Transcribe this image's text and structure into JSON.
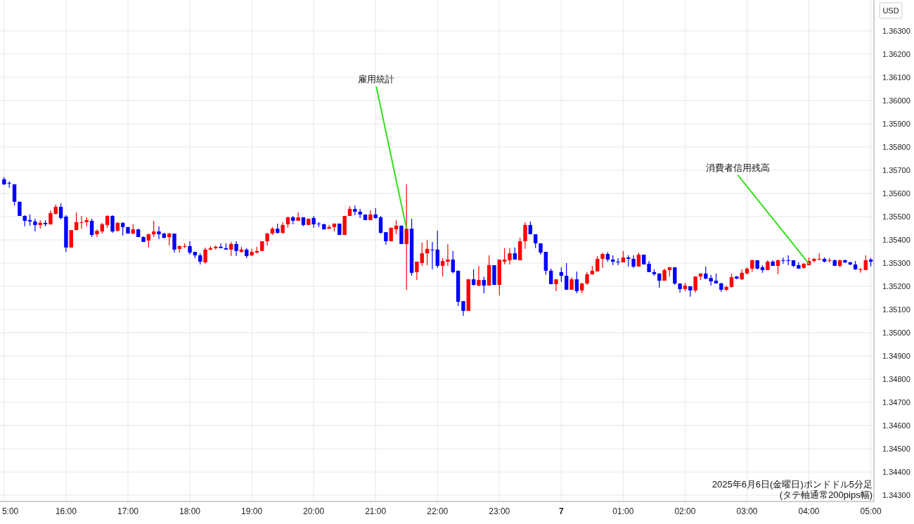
{
  "chart_data": {
    "type": "candlestick",
    "ylabel": "USD",
    "annotations": [
      {
        "text": "雇用統計",
        "x": "2025-06-06T21:30",
        "y": 1.35448
      },
      {
        "text": "消費者信用残高",
        "x": "2025-06-07T04:00",
        "y": 1.35297
      },
      "2025年6月6日(金曜日)ポンドドル5分足",
      "(タテ軸通常200pips幅)"
    ],
    "grid": true,
    "xlim": [
      "2025-06-06T14:56",
      "2025-06-07T05:03"
    ],
    "xticks": [
      {
        "value": "2025-06-06T15:00",
        "label": "5:00"
      },
      {
        "value": "2025-06-06T16:00",
        "label": "16:00"
      },
      {
        "value": "2025-06-06T17:00",
        "label": "17:00"
      },
      {
        "value": "2025-06-06T18:00",
        "label": "18:00"
      },
      {
        "value": "2025-06-06T19:00",
        "label": "19:00"
      },
      {
        "value": "2025-06-06T20:00",
        "label": "20:00"
      },
      {
        "value": "2025-06-06T21:00",
        "label": "21:00"
      },
      {
        "value": "2025-06-06T22:00",
        "label": "22:00"
      },
      {
        "value": "2025-06-06T23:00",
        "label": "23:00"
      },
      {
        "value": "2025-06-07T00:00",
        "label": "7"
      },
      {
        "value": "2025-06-07T01:00",
        "label": "01:00"
      },
      {
        "value": "2025-06-07T02:00",
        "label": "02:00"
      },
      {
        "value": "2025-06-07T03:00",
        "label": "03:00"
      },
      {
        "value": "2025-06-07T04:00",
        "label": "04:00"
      },
      {
        "value": "2025-06-07T05:00",
        "label": "05:00"
      }
    ],
    "ylim": [
      1.34273,
      1.36433
    ],
    "yticks": [
      {
        "value": 1.343,
        "label": "1.34300"
      },
      {
        "value": 1.344,
        "label": "1.34400"
      },
      {
        "value": 1.345,
        "label": "1.34500"
      },
      {
        "value": 1.346,
        "label": "1.34600"
      },
      {
        "value": 1.347,
        "label": "1.34700"
      },
      {
        "value": 1.348,
        "label": "1.34800"
      },
      {
        "value": 1.349,
        "label": "1.34900"
      },
      {
        "value": 1.35,
        "label": "1.35000"
      },
      {
        "value": 1.351,
        "label": "1.35100"
      },
      {
        "value": 1.352,
        "label": "1.35200"
      },
      {
        "value": 1.353,
        "label": "1.35300"
      },
      {
        "value": 1.354,
        "label": "1.35400"
      },
      {
        "value": 1.355,
        "label": "1.35500"
      },
      {
        "value": 1.356,
        "label": "1.35600"
      },
      {
        "value": 1.357,
        "label": "1.35700"
      },
      {
        "value": 1.358,
        "label": "1.35800"
      },
      {
        "value": 1.359,
        "label": "1.35900"
      },
      {
        "value": 1.36,
        "label": "1.36000"
      },
      {
        "value": 1.361,
        "label": "1.36100"
      },
      {
        "value": 1.362,
        "label": "1.36200"
      },
      {
        "value": 1.363,
        "label": "1.36300"
      }
    ],
    "x": [
      "2025-06-06T15:00",
      "2025-06-06T15:05",
      "2025-06-06T15:10",
      "2025-06-06T15:15",
      "2025-06-06T15:20",
      "2025-06-06T15:25",
      "2025-06-06T15:30",
      "2025-06-06T15:35",
      "2025-06-06T15:40",
      "2025-06-06T15:45",
      "2025-06-06T15:50",
      "2025-06-06T15:55",
      "2025-06-06T16:00",
      "2025-06-06T16:05",
      "2025-06-06T16:10",
      "2025-06-06T16:15",
      "2025-06-06T16:20",
      "2025-06-06T16:25",
      "2025-06-06T16:30",
      "2025-06-06T16:35",
      "2025-06-06T16:40",
      "2025-06-06T16:45",
      "2025-06-06T16:50",
      "2025-06-06T16:55",
      "2025-06-06T17:00",
      "2025-06-06T17:05",
      "2025-06-06T17:10",
      "2025-06-06T17:15",
      "2025-06-06T17:20",
      "2025-06-06T17:25",
      "2025-06-06T17:30",
      "2025-06-06T17:35",
      "2025-06-06T17:40",
      "2025-06-06T17:45",
      "2025-06-06T17:50",
      "2025-06-06T17:55",
      "2025-06-06T18:00",
      "2025-06-06T18:05",
      "2025-06-06T18:10",
      "2025-06-06T18:15",
      "2025-06-06T18:20",
      "2025-06-06T18:25",
      "2025-06-06T18:30",
      "2025-06-06T18:35",
      "2025-06-06T18:40",
      "2025-06-06T18:45",
      "2025-06-06T18:50",
      "2025-06-06T18:55",
      "2025-06-06T19:00",
      "2025-06-06T19:05",
      "2025-06-06T19:10",
      "2025-06-06T19:15",
      "2025-06-06T19:20",
      "2025-06-06T19:25",
      "2025-06-06T19:30",
      "2025-06-06T19:35",
      "2025-06-06T19:40",
      "2025-06-06T19:45",
      "2025-06-06T19:50",
      "2025-06-06T19:55",
      "2025-06-06T20:00",
      "2025-06-06T20:05",
      "2025-06-06T20:10",
      "2025-06-06T20:15",
      "2025-06-06T20:20",
      "2025-06-06T20:25",
      "2025-06-06T20:30",
      "2025-06-06T20:35",
      "2025-06-06T20:40",
      "2025-06-06T20:45",
      "2025-06-06T20:50",
      "2025-06-06T20:55",
      "2025-06-06T21:00",
      "2025-06-06T21:05",
      "2025-06-06T21:10",
      "2025-06-06T21:15",
      "2025-06-06T21:20",
      "2025-06-06T21:25",
      "2025-06-06T21:30",
      "2025-06-06T21:35",
      "2025-06-06T21:40",
      "2025-06-06T21:45",
      "2025-06-06T21:50",
      "2025-06-06T21:55",
      "2025-06-06T22:00",
      "2025-06-06T22:05",
      "2025-06-06T22:10",
      "2025-06-06T22:15",
      "2025-06-06T22:20",
      "2025-06-06T22:25",
      "2025-06-06T22:30",
      "2025-06-06T22:35",
      "2025-06-06T22:40",
      "2025-06-06T22:45",
      "2025-06-06T22:50",
      "2025-06-06T22:55",
      "2025-06-06T23:00",
      "2025-06-06T23:05",
      "2025-06-06T23:10",
      "2025-06-06T23:15",
      "2025-06-06T23:20",
      "2025-06-06T23:25",
      "2025-06-06T23:30",
      "2025-06-06T23:35",
      "2025-06-06T23:40",
      "2025-06-06T23:45",
      "2025-06-06T23:50",
      "2025-06-06T23:55",
      "2025-06-07T00:00",
      "2025-06-07T00:05",
      "2025-06-07T00:10",
      "2025-06-07T00:15",
      "2025-06-07T00:20",
      "2025-06-07T00:25",
      "2025-06-07T00:30",
      "2025-06-07T00:35",
      "2025-06-07T00:40",
      "2025-06-07T00:45",
      "2025-06-07T00:50",
      "2025-06-07T00:55",
      "2025-06-07T01:00",
      "2025-06-07T01:05",
      "2025-06-07T01:10",
      "2025-06-07T01:15",
      "2025-06-07T01:20",
      "2025-06-07T01:25",
      "2025-06-07T01:30",
      "2025-06-07T01:35",
      "2025-06-07T01:40",
      "2025-06-07T01:45",
      "2025-06-07T01:50",
      "2025-06-07T01:55",
      "2025-06-07T02:00",
      "2025-06-07T02:05",
      "2025-06-07T02:10",
      "2025-06-07T02:15",
      "2025-06-07T02:20",
      "2025-06-07T02:25",
      "2025-06-07T02:30",
      "2025-06-07T02:35",
      "2025-06-07T02:40",
      "2025-06-07T02:45",
      "2025-06-07T02:50",
      "2025-06-07T02:55",
      "2025-06-07T03:00",
      "2025-06-07T03:05",
      "2025-06-07T03:10",
      "2025-06-07T03:15",
      "2025-06-07T03:20",
      "2025-06-07T03:25",
      "2025-06-07T03:30",
      "2025-06-07T03:35",
      "2025-06-07T03:40",
      "2025-06-07T03:45",
      "2025-06-07T03:50",
      "2025-06-07T03:55",
      "2025-06-07T04:00",
      "2025-06-07T04:05",
      "2025-06-07T04:10",
      "2025-06-07T04:15",
      "2025-06-07T04:20",
      "2025-06-07T04:25",
      "2025-06-07T04:30",
      "2025-06-07T04:35",
      "2025-06-07T04:40",
      "2025-06-07T04:45",
      "2025-06-07T04:50",
      "2025-06-07T04:55",
      "2025-06-07T05:00"
    ],
    "ohlc": [
      [
        1.35661,
        1.3567,
        1.35636,
        1.35639
      ],
      [
        1.35645,
        1.35652,
        1.35624,
        1.35642
      ],
      [
        1.35639,
        1.35639,
        1.35548,
        1.35564
      ],
      [
        1.35564,
        1.35564,
        1.35503,
        1.35503
      ],
      [
        1.35503,
        1.35506,
        1.35458,
        1.35482
      ],
      [
        1.35485,
        1.35509,
        1.35461,
        1.35479
      ],
      [
        1.35479,
        1.35491,
        1.35436,
        1.35464
      ],
      [
        1.35464,
        1.35485,
        1.35448,
        1.35473
      ],
      [
        1.35473,
        1.35485,
        1.35458,
        1.35467
      ],
      [
        1.35467,
        1.35527,
        1.35464,
        1.35515
      ],
      [
        1.35512,
        1.35552,
        1.35509,
        1.35542
      ],
      [
        1.35542,
        1.35558,
        1.35488,
        1.35494
      ],
      [
        1.355,
        1.35506,
        1.35348,
        1.35367
      ],
      [
        1.35367,
        1.35442,
        1.35367,
        1.35442
      ],
      [
        1.35442,
        1.35518,
        1.35442,
        1.35476
      ],
      [
        1.35473,
        1.35503,
        1.35448,
        1.35476
      ],
      [
        1.35476,
        1.35497,
        1.35458,
        1.35485
      ],
      [
        1.35482,
        1.35491,
        1.35412,
        1.35421
      ],
      [
        1.35424,
        1.35445,
        1.35412,
        1.35439
      ],
      [
        1.35436,
        1.35473,
        1.35427,
        1.35467
      ],
      [
        1.35464,
        1.35506,
        1.35452,
        1.35503
      ],
      [
        1.35503,
        1.35506,
        1.3543,
        1.35436
      ],
      [
        1.35439,
        1.35476,
        1.35436,
        1.35473
      ],
      [
        1.35473,
        1.35476,
        1.35418,
        1.35455
      ],
      [
        1.35455,
        1.35455,
        1.35427,
        1.35427
      ],
      [
        1.35427,
        1.35467,
        1.35424,
        1.35445
      ],
      [
        1.35445,
        1.35448,
        1.35412,
        1.35412
      ],
      [
        1.35412,
        1.35415,
        1.35391,
        1.35391
      ],
      [
        1.35397,
        1.35427,
        1.35367,
        1.35424
      ],
      [
        1.35424,
        1.35482,
        1.35412,
        1.35436
      ],
      [
        1.35436,
        1.35458,
        1.35403,
        1.35424
      ],
      [
        1.35427,
        1.3543,
        1.35406,
        1.35409
      ],
      [
        1.35412,
        1.3543,
        1.35376,
        1.35427
      ],
      [
        1.35427,
        1.35427,
        1.35345,
        1.35358
      ],
      [
        1.35361,
        1.35376,
        1.35345,
        1.35373
      ],
      [
        1.3537,
        1.35385,
        1.35364,
        1.35373
      ],
      [
        1.35373,
        1.35394,
        1.35336,
        1.35345
      ],
      [
        1.35348,
        1.35348,
        1.35321,
        1.35333
      ],
      [
        1.35333,
        1.35342,
        1.35294,
        1.35306
      ],
      [
        1.35303,
        1.35367,
        1.35297,
        1.35358
      ],
      [
        1.35358,
        1.35373,
        1.35355,
        1.35364
      ],
      [
        1.35364,
        1.35376,
        1.35358,
        1.3537
      ],
      [
        1.3537,
        1.35385,
        1.35364,
        1.35364
      ],
      [
        1.35364,
        1.35385,
        1.35358,
        1.35358
      ],
      [
        1.35358,
        1.35391,
        1.3533,
        1.35382
      ],
      [
        1.35382,
        1.35394,
        1.3533,
        1.35352
      ],
      [
        1.35348,
        1.3537,
        1.35345,
        1.35358
      ],
      [
        1.35358,
        1.35364,
        1.35321,
        1.3533
      ],
      [
        1.35333,
        1.35361,
        1.3533,
        1.35348
      ],
      [
        1.35345,
        1.3537,
        1.35342,
        1.35352
      ],
      [
        1.35352,
        1.35394,
        1.35352,
        1.35394
      ],
      [
        1.35394,
        1.3543,
        1.35376,
        1.35427
      ],
      [
        1.35427,
        1.35455,
        1.35421,
        1.35448
      ],
      [
        1.35448,
        1.3547,
        1.35427,
        1.3543
      ],
      [
        1.3543,
        1.35476,
        1.35427,
        1.35464
      ],
      [
        1.35467,
        1.355,
        1.35452,
        1.35497
      ],
      [
        1.35497,
        1.35503,
        1.35467,
        1.35482
      ],
      [
        1.35482,
        1.35518,
        1.35482,
        1.35497
      ],
      [
        1.35497,
        1.35497,
        1.35458,
        1.35464
      ],
      [
        1.35464,
        1.35491,
        1.35464,
        1.35491
      ],
      [
        1.35494,
        1.35503,
        1.35452,
        1.35467
      ],
      [
        1.3547,
        1.35476,
        1.35455,
        1.35467
      ],
      [
        1.35467,
        1.3547,
        1.35445,
        1.35445
      ],
      [
        1.35448,
        1.35464,
        1.35448,
        1.35455
      ],
      [
        1.35455,
        1.3547,
        1.35436,
        1.3547
      ],
      [
        1.3547,
        1.3547,
        1.35421,
        1.35421
      ],
      [
        1.35421,
        1.35503,
        1.35421,
        1.35503
      ],
      [
        1.35503,
        1.35545,
        1.35503,
        1.35533
      ],
      [
        1.35533,
        1.35548,
        1.35506,
        1.35521
      ],
      [
        1.35521,
        1.35533,
        1.35494,
        1.35509
      ],
      [
        1.35509,
        1.35509,
        1.35485,
        1.35485
      ],
      [
        1.35485,
        1.35527,
        1.35485,
        1.35509
      ],
      [
        1.35509,
        1.35536,
        1.35491,
        1.35494
      ],
      [
        1.35497,
        1.35503,
        1.35427,
        1.3543
      ],
      [
        1.35433,
        1.35433,
        1.35379,
        1.35394
      ],
      [
        1.35394,
        1.35452,
        1.35394,
        1.35452
      ],
      [
        1.35445,
        1.35485,
        1.35424,
        1.35461
      ],
      [
        1.35461,
        1.35461,
        1.35382,
        1.35382
      ],
      [
        1.35382,
        1.35639,
        1.35185,
        1.35448
      ],
      [
        1.35448,
        1.35491,
        1.35245,
        1.35258
      ],
      [
        1.35261,
        1.35306,
        1.35227,
        1.35306
      ],
      [
        1.353,
        1.35388,
        1.35288,
        1.35342
      ],
      [
        1.35342,
        1.354,
        1.35291,
        1.35361
      ],
      [
        1.35358,
        1.35391,
        1.35273,
        1.35355
      ],
      [
        1.35358,
        1.35439,
        1.35279,
        1.35288
      ],
      [
        1.35288,
        1.35321,
        1.35242,
        1.35309
      ],
      [
        1.35306,
        1.35382,
        1.35288,
        1.35315
      ],
      [
        1.35315,
        1.35352,
        1.35255,
        1.35261
      ],
      [
        1.35267,
        1.35267,
        1.35115,
        1.35133
      ],
      [
        1.35136,
        1.35136,
        1.35073,
        1.35094
      ],
      [
        1.35094,
        1.3523,
        1.35094,
        1.3523
      ],
      [
        1.3523,
        1.35273,
        1.35203,
        1.35206
      ],
      [
        1.35203,
        1.35288,
        1.352,
        1.35227
      ],
      [
        1.35227,
        1.35242,
        1.3517,
        1.35203
      ],
      [
        1.35203,
        1.35333,
        1.35203,
        1.35291
      ],
      [
        1.35291,
        1.35291,
        1.35206,
        1.35206
      ],
      [
        1.35206,
        1.35315,
        1.35161,
        1.35315
      ],
      [
        1.35306,
        1.35364,
        1.35294,
        1.35315
      ],
      [
        1.35312,
        1.35364,
        1.35294,
        1.35342
      ],
      [
        1.35342,
        1.35367,
        1.35315,
        1.35315
      ],
      [
        1.35312,
        1.35409,
        1.35312,
        1.35394
      ],
      [
        1.35394,
        1.35476,
        1.35361,
        1.35464
      ],
      [
        1.35464,
        1.35479,
        1.35424,
        1.35424
      ],
      [
        1.35424,
        1.35424,
        1.35364,
        1.35385
      ],
      [
        1.35385,
        1.35385,
        1.35336,
        1.35345
      ],
      [
        1.35348,
        1.35348,
        1.35249,
        1.35267
      ],
      [
        1.35267,
        1.35276,
        1.35209,
        1.35209
      ],
      [
        1.35209,
        1.3523,
        1.35179,
        1.3523
      ],
      [
        1.35261,
        1.35282,
        1.35218,
        1.35245
      ],
      [
        1.35245,
        1.353,
        1.35185,
        1.35185
      ],
      [
        1.35185,
        1.35239,
        1.35185,
        1.3523
      ],
      [
        1.3523,
        1.35264,
        1.3517,
        1.35179
      ],
      [
        1.35182,
        1.35215,
        1.3517,
        1.35212
      ],
      [
        1.35212,
        1.35261,
        1.35206,
        1.35252
      ],
      [
        1.35252,
        1.35288,
        1.35249,
        1.35267
      ],
      [
        1.35264,
        1.3533,
        1.35264,
        1.35318
      ],
      [
        1.35318,
        1.35345,
        1.35279,
        1.35339
      ],
      [
        1.35339,
        1.35348,
        1.35306,
        1.35315
      ],
      [
        1.35315,
        1.35333,
        1.35291,
        1.35306
      ],
      [
        1.35306,
        1.35321,
        1.35291,
        1.35303
      ],
      [
        1.35303,
        1.35352,
        1.35303,
        1.35324
      ],
      [
        1.35324,
        1.35333,
        1.35285,
        1.35318
      ],
      [
        1.35318,
        1.35333,
        1.35279,
        1.35285
      ],
      [
        1.35285,
        1.35345,
        1.35285,
        1.35336
      ],
      [
        1.35336,
        1.35336,
        1.35294,
        1.35294
      ],
      [
        1.35297,
        1.35309,
        1.35261,
        1.35261
      ],
      [
        1.35261,
        1.35273,
        1.35245,
        1.35252
      ],
      [
        1.35255,
        1.35255,
        1.35194,
        1.35224
      ],
      [
        1.35224,
        1.35276,
        1.35224,
        1.3527
      ],
      [
        1.3527,
        1.35282,
        1.35242,
        1.35282
      ],
      [
        1.35282,
        1.35282,
        1.35206,
        1.35212
      ],
      [
        1.35212,
        1.35212,
        1.35173,
        1.35188
      ],
      [
        1.35188,
        1.35215,
        1.35179,
        1.35203
      ],
      [
        1.352,
        1.352,
        1.35155,
        1.35182
      ],
      [
        1.35182,
        1.35242,
        1.35173,
        1.35242
      ],
      [
        1.35242,
        1.35255,
        1.35227,
        1.35255
      ],
      [
        1.35255,
        1.35285,
        1.3523,
        1.35233
      ],
      [
        1.35236,
        1.35249,
        1.35203,
        1.35221
      ],
      [
        1.35224,
        1.35255,
        1.35212,
        1.35212
      ],
      [
        1.35212,
        1.35215,
        1.35176,
        1.35185
      ],
      [
        1.35185,
        1.35203,
        1.35179,
        1.35197
      ],
      [
        1.35197,
        1.35255,
        1.35194,
        1.35239
      ],
      [
        1.35242,
        1.35245,
        1.3523,
        1.35233
      ],
      [
        1.3523,
        1.35273,
        1.35227,
        1.35258
      ],
      [
        1.35255,
        1.35282,
        1.35252,
        1.35276
      ],
      [
        1.35276,
        1.35315,
        1.35261,
        1.35312
      ],
      [
        1.35312,
        1.35312,
        1.35273,
        1.35276
      ],
      [
        1.35282,
        1.35291,
        1.35258,
        1.3527
      ],
      [
        1.3527,
        1.35312,
        1.3527,
        1.35306
      ],
      [
        1.35306,
        1.35312,
        1.35288,
        1.35288
      ],
      [
        1.35288,
        1.35315,
        1.35252,
        1.35312
      ],
      [
        1.35312,
        1.35324,
        1.35297,
        1.35309
      ],
      [
        1.35312,
        1.35333,
        1.35291,
        1.35309
      ],
      [
        1.35312,
        1.35312,
        1.35282,
        1.35288
      ],
      [
        1.35291,
        1.35303,
        1.35276,
        1.35276
      ],
      [
        1.35279,
        1.353,
        1.35276,
        1.35297
      ],
      [
        1.35291,
        1.35324,
        1.35291,
        1.35309
      ],
      [
        1.35309,
        1.35321,
        1.35303,
        1.35318
      ],
      [
        1.35315,
        1.35342,
        1.35312,
        1.35318
      ],
      [
        1.35318,
        1.35324,
        1.35303,
        1.35306
      ],
      [
        1.35309,
        1.35321,
        1.35303,
        1.35312
      ],
      [
        1.35312,
        1.35315,
        1.35288,
        1.35288
      ],
      [
        1.35288,
        1.35315,
        1.35282,
        1.35312
      ],
      [
        1.35312,
        1.35315,
        1.353,
        1.35303
      ],
      [
        1.35303,
        1.35306,
        1.35291,
        1.35294
      ],
      [
        1.35294,
        1.35309,
        1.3527,
        1.35273
      ],
      [
        1.3527,
        1.35279,
        1.35258,
        1.35273
      ],
      [
        1.3527,
        1.35333,
        1.3527,
        1.35312
      ],
      [
        1.35315,
        1.35321,
        1.35285,
        1.35306
      ]
    ],
    "colors": [
      "#0000ff",
      "#0000ff",
      "#0000ff",
      "#0000ff",
      "#0000ff",
      "#0000ff",
      "#0000ff",
      "#ff0000",
      "#0000ff",
      "#ff0000",
      "#ff0000",
      "#0000ff",
      "#0000ff",
      "#ff0000",
      "#ff0000",
      "#ff0000",
      "#ff0000",
      "#0000ff",
      "#ff0000",
      "#ff0000",
      "#ff0000",
      "#0000ff",
      "#ff0000",
      "#0000ff",
      "#0000ff",
      "#ff0000",
      "#0000ff",
      "#0000ff",
      "#ff0000",
      "#ff0000",
      "#0000ff",
      "#0000ff",
      "#ff0000",
      "#0000ff",
      "#ff0000",
      "#ff0000",
      "#0000ff",
      "#0000ff",
      "#0000ff",
      "#ff0000",
      "#ff0000",
      "#ff0000",
      "#0000ff",
      "#0000ff",
      "#ff0000",
      "#0000ff",
      "#ff0000",
      "#0000ff",
      "#ff0000",
      "#ff0000",
      "#ff0000",
      "#ff0000",
      "#ff0000",
      "#0000ff",
      "#ff0000",
      "#ff0000",
      "#0000ff",
      "#ff0000",
      "#0000ff",
      "#ff0000",
      "#0000ff",
      "#0000ff",
      "#0000ff",
      "#ff0000",
      "#ff0000",
      "#0000ff",
      "#ff0000",
      "#ff0000",
      "#0000ff",
      "#0000ff",
      "#0000ff",
      "#ff0000",
      "#0000ff",
      "#0000ff",
      "#0000ff",
      "#ff0000",
      "#ff0000",
      "#0000ff",
      "#ff0000",
      "#0000ff",
      "#ff0000",
      "#ff0000",
      "#ff0000",
      "#0000ff",
      "#0000ff",
      "#ff0000",
      "#ff0000",
      "#0000ff",
      "#0000ff",
      "#0000ff",
      "#ff0000",
      "#0000ff",
      "#ff0000",
      "#0000ff",
      "#ff0000",
      "#0000ff",
      "#ff0000",
      "#ff0000",
      "#ff0000",
      "#0000ff",
      "#ff0000",
      "#ff0000",
      "#0000ff",
      "#0000ff",
      "#0000ff",
      "#0000ff",
      "#0000ff",
      "#ff0000",
      "#0000ff",
      "#0000ff",
      "#ff0000",
      "#0000ff",
      "#ff0000",
      "#ff0000",
      "#ff0000",
      "#ff0000",
      "#ff0000",
      "#0000ff",
      "#0000ff",
      "#0000ff",
      "#ff0000",
      "#0000ff",
      "#0000ff",
      "#ff0000",
      "#0000ff",
      "#0000ff",
      "#0000ff",
      "#0000ff",
      "#ff0000",
      "#ff0000",
      "#0000ff",
      "#0000ff",
      "#ff0000",
      "#0000ff",
      "#ff0000",
      "#ff0000",
      "#0000ff",
      "#0000ff",
      "#0000ff",
      "#0000ff",
      "#ff0000",
      "#ff0000",
      "#0000ff",
      "#ff0000",
      "#ff0000",
      "#ff0000",
      "#0000ff",
      "#0000ff",
      "#ff0000",
      "#0000ff",
      "#ff0000",
      "#0000ff",
      "#0000ff",
      "#0000ff",
      "#0000ff",
      "#ff0000",
      "#ff0000",
      "#ff0000",
      "#ff0000",
      "#0000ff",
      "#ff0000",
      "#0000ff",
      "#ff0000",
      "#0000ff",
      "#0000ff",
      "#0000ff",
      "#ff0000",
      "#ff0000",
      "#0000ff"
    ]
  }
}
